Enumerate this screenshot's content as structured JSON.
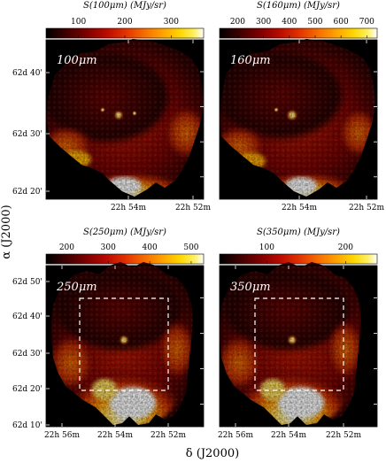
{
  "figure": {
    "y_axis_label": "α (J2000)",
    "x_axis_label": "δ (J2000)"
  },
  "panels": [
    {
      "id": "p100",
      "band_label": "100μm",
      "colorbar_title": "S(100μm) (MJy/sr)",
      "colorbar_ticks": [
        "100",
        "200",
        "300"
      ],
      "colorbar_tick_values": [
        100,
        200,
        300
      ],
      "colorbar_range": [
        30,
        370
      ],
      "dec_ticks": [
        "62d 40'",
        "62d 30'",
        "62d 20'"
      ],
      "ra_ticks": [
        "22h 54m",
        "22h 52m"
      ],
      "has_box": false
    },
    {
      "id": "p160",
      "band_label": "160μm",
      "colorbar_title": "S(160μm) (MJy/sr)",
      "colorbar_ticks": [
        "200",
        "300",
        "400",
        "500",
        "600",
        "700"
      ],
      "colorbar_tick_values": [
        200,
        300,
        400,
        500,
        600,
        700
      ],
      "colorbar_range": [
        130,
        740
      ],
      "dec_ticks": [],
      "ra_ticks": [
        "22h 54m",
        "22h 52m"
      ],
      "has_box": false
    },
    {
      "id": "p250",
      "band_label": "250μm",
      "colorbar_title": "S(250μm) (MJy/sr)",
      "colorbar_ticks": [
        "200",
        "300",
        "400",
        "500"
      ],
      "colorbar_tick_values": [
        200,
        300,
        400,
        500
      ],
      "colorbar_range": [
        150,
        530
      ],
      "dec_ticks": [
        "62d 50'",
        "62d 40'",
        "62d 30'",
        "62d 20'",
        "62d 10'"
      ],
      "ra_ticks": [
        "22h 56m",
        "22h 54m",
        "22h 52m"
      ],
      "has_box": true
    },
    {
      "id": "p350",
      "band_label": "350μm",
      "colorbar_title": "S(350μm) (MJy/sr)",
      "colorbar_ticks": [
        "100",
        "200"
      ],
      "colorbar_tick_values": [
        100,
        200
      ],
      "colorbar_range": [
        40,
        240
      ],
      "dec_ticks": [],
      "ra_ticks": [
        "22h 56m",
        "22h 54m",
        "22h 52m"
      ],
      "has_box": true
    }
  ],
  "colormap": [
    "#000000",
    "#3a0000",
    "#7a0000",
    "#b80a00",
    "#e03000",
    "#f56a00",
    "#ffa200",
    "#ffd600",
    "#fff060",
    "#ffffff"
  ]
}
